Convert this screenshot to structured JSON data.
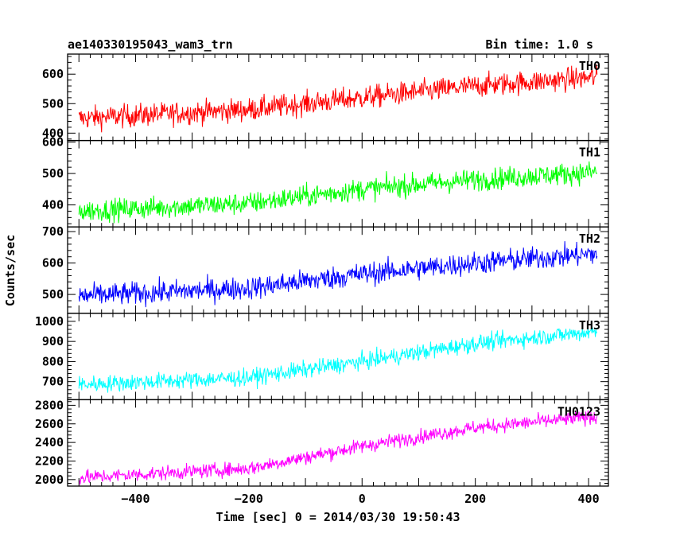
{
  "header": {
    "title": "ae140330195043_wam3_trn",
    "bin_time": "Bin time: 1.0 s"
  },
  "chart_data": {
    "type": "line",
    "title": "ae140330195043_wam3_trn",
    "xlabel": "Time [sec] 0 = 2014/03/30 19:50:43",
    "ylabel": "Counts/sec",
    "xlim": [
      -520,
      435
    ],
    "x_ticks": [
      -400,
      -200,
      0,
      200,
      400
    ],
    "x_tick_labels": [
      "−400",
      "−200",
      "0",
      "200",
      "400"
    ],
    "x_range": [
      -500,
      415
    ],
    "bin_time_s": 1.0,
    "panels": [
      {
        "name": "TH0",
        "color": "#ff0000",
        "ylim": [
          375,
          668
        ],
        "yticks": [
          400,
          500,
          600
        ],
        "trend": [
          [
            -500,
            450
          ],
          [
            -200,
            480
          ],
          [
            0,
            520
          ],
          [
            200,
            560
          ],
          [
            415,
            590
          ]
        ],
        "noise": 28
      },
      {
        "name": "TH1",
        "color": "#00ff00",
        "ylim": [
          330,
          605
        ],
        "yticks": [
          400,
          500,
          600
        ],
        "trend": [
          [
            -500,
            380
          ],
          [
            -200,
            405
          ],
          [
            0,
            450
          ],
          [
            200,
            480
          ],
          [
            415,
            505
          ]
        ],
        "noise": 25
      },
      {
        "name": "TH2",
        "color": "#0000ff",
        "ylim": [
          440,
          715
        ],
        "yticks": [
          500,
          600,
          700
        ],
        "trend": [
          [
            -500,
            495
          ],
          [
            -200,
            520
          ],
          [
            0,
            565
          ],
          [
            200,
            600
          ],
          [
            415,
            630
          ]
        ],
        "noise": 26
      },
      {
        "name": "TH3",
        "color": "#00ffff",
        "ylim": [
          610,
          1040
        ],
        "yticks": [
          700,
          800,
          900,
          1000
        ],
        "trend": [
          [
            -500,
            685
          ],
          [
            -200,
            720
          ],
          [
            0,
            800
          ],
          [
            200,
            890
          ],
          [
            415,
            950
          ]
        ],
        "noise": 30
      },
      {
        "name": "TH0123",
        "color": "#ff00ff",
        "ylim": [
          1930,
          2860
        ],
        "yticks": [
          2000,
          2200,
          2400,
          2600,
          2800
        ],
        "trend": [
          [
            -500,
            2020
          ],
          [
            -200,
            2120
          ],
          [
            0,
            2360
          ],
          [
            200,
            2560
          ],
          [
            415,
            2680
          ]
        ],
        "noise": 55
      }
    ]
  }
}
